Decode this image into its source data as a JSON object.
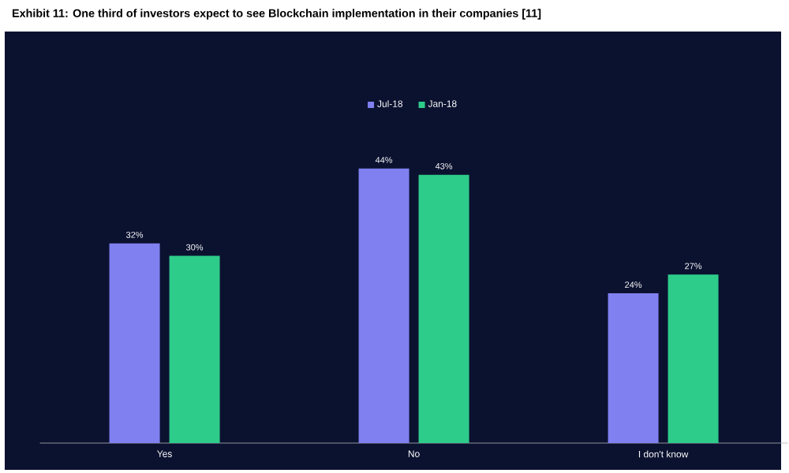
{
  "chart_data": {
    "type": "bar",
    "title": "Exhibit 11: One third of investors expect to see Blockchain implementation in their companies [11]",
    "categories": [
      "Yes",
      "No",
      "I don't know"
    ],
    "series": [
      {
        "name": "Jul-18",
        "color": "#8080f0",
        "values": [
          32,
          44,
          24
        ],
        "value_labels": [
          "32%",
          "44%",
          "24%"
        ]
      },
      {
        "name": "Jan-18",
        "color": "#2ecc8a",
        "values": [
          30,
          43,
          27
        ],
        "value_labels": [
          "30%",
          "43%",
          "27%"
        ]
      }
    ],
    "legend": "top"
  }
}
